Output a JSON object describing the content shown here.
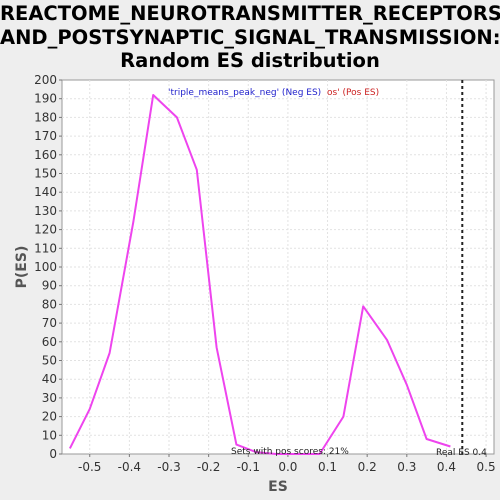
{
  "chart_data": {
    "type": "line",
    "title_lines": [
      "REACTOME_NEUROTRANSMITTER_RECEPTORS_",
      "AND_POSTSYNAPTIC_SIGNAL_TRANSMISSION:",
      "Random ES distribution"
    ],
    "xlabel": "ES",
    "ylabel": "P(ES)",
    "xlim": [
      -0.57,
      0.52
    ],
    "ylim": [
      0,
      200
    ],
    "x_ticks": [
      "-0.5",
      "-0.4",
      "-0.3",
      "-0.2",
      "-0.1",
      "0.0",
      "0.1",
      "0.2",
      "0.3",
      "0.4",
      "0.5"
    ],
    "y_ticks": [
      "0",
      "10",
      "20",
      "30",
      "40",
      "50",
      "60",
      "70",
      "80",
      "90",
      "100",
      "110",
      "120",
      "130",
      "140",
      "150",
      "160",
      "170",
      "180",
      "190",
      "200"
    ],
    "grid": true,
    "series": [
      {
        "legend_neg": "'triple_means_peak_neg' (Neg ES)",
        "legend_pos": "os' (Pos ES)",
        "color": "#ee44ee",
        "x": [
          -0.55,
          -0.5,
          -0.45,
          -0.39,
          -0.34,
          -0.28,
          -0.23,
          -0.18,
          -0.13,
          -0.08,
          -0.03,
          0.03,
          0.08,
          0.14,
          0.19,
          0.25,
          0.3,
          0.35,
          0.41
        ],
        "y": [
          3,
          24,
          54,
          124,
          192,
          180,
          152,
          57,
          5,
          1,
          0,
          0,
          0,
          20,
          79,
          61,
          37,
          8,
          4
        ]
      }
    ],
    "real_es": 0.44,
    "annotations": {
      "pos_scores": "Sets with pos scores: 21%",
      "real_es": "Real ES 0.4"
    }
  }
}
